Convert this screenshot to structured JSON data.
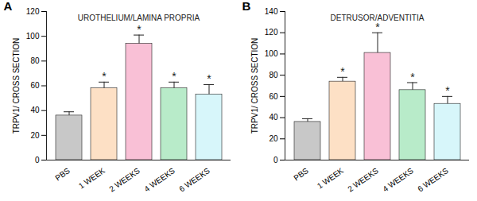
{
  "chart_data": [
    {
      "type": "bar",
      "panel": "A",
      "title": "UROTHELIUM/LAMINA PROPRIA",
      "y_label": "TRPV1/ CROSS SECTION",
      "categories": [
        "PBS",
        "1 WEEK",
        "2 WEEKS",
        "4 WEEKS",
        "6 WEEKS"
      ],
      "values": [
        36,
        58,
        94,
        58,
        53
      ],
      "error": [
        3,
        5,
        7,
        5,
        8
      ],
      "significance": [
        null,
        "*",
        "*",
        "*",
        "*"
      ],
      "colors": [
        "#c8c8c8",
        "#fde0c5",
        "#f9c0d6",
        "#b8ebc9",
        "#d7f6fa"
      ],
      "ylim": [
        0,
        120
      ],
      "yticks": [
        0,
        20,
        40,
        60,
        80,
        100,
        120
      ]
    },
    {
      "type": "bar",
      "panel": "B",
      "title": "DETRUSOR/ADVENTITIA",
      "y_label": "TRPV1/ CROSS SECTION",
      "categories": [
        "PBS",
        "1 WEEK",
        "2 WEEKS",
        "4 WEEKS",
        "6 WEEKS"
      ],
      "values": [
        36,
        74,
        101,
        66,
        53
      ],
      "error": [
        3,
        4,
        19,
        7,
        7
      ],
      "significance": [
        null,
        "*",
        "*",
        "*",
        "*"
      ],
      "colors": [
        "#c8c8c8",
        "#fde0c5",
        "#f9c0d6",
        "#b8ebc9",
        "#d7f6fa"
      ],
      "ylim": [
        0,
        140
      ],
      "yticks": [
        0,
        20,
        40,
        60,
        80,
        100,
        120,
        140
      ]
    }
  ]
}
